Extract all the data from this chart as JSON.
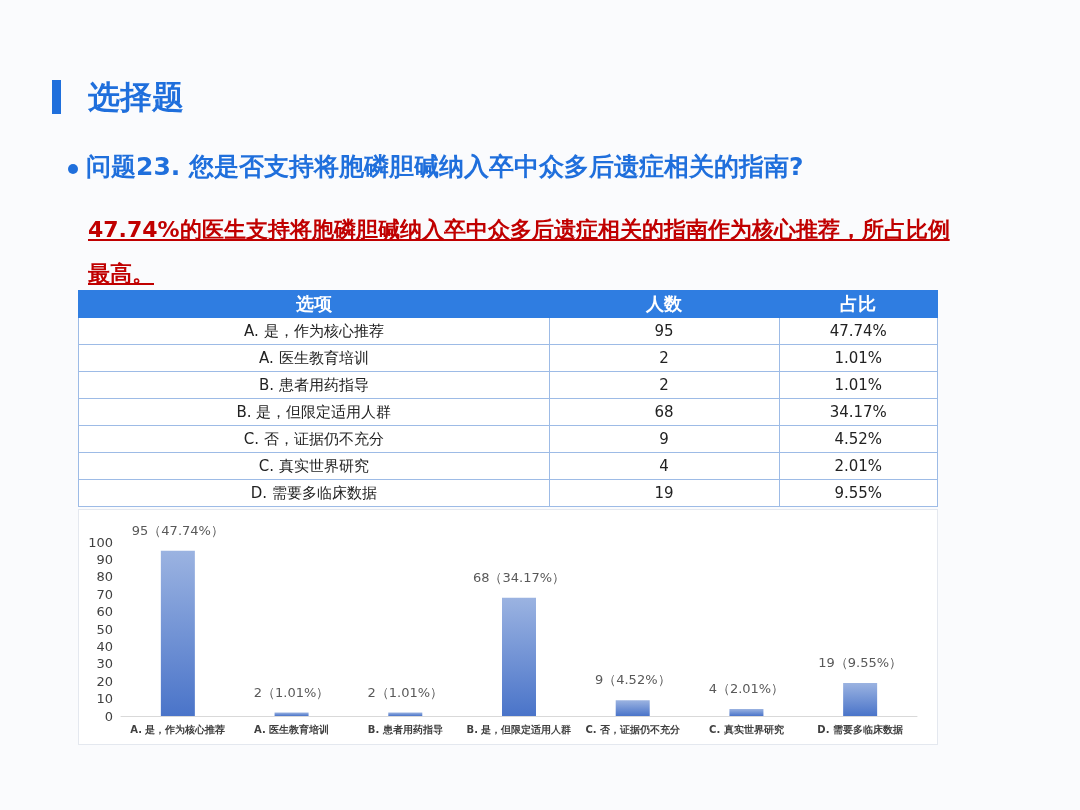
{
  "chart_data": {
    "type": "bar",
    "title": "选择题",
    "subtitle": "问题23. 您是否支持将胞磷胆碱纳入卒中众多后遗症相关的指南?",
    "categories": [
      "A. 是，作为核心推荐",
      "A. 医生教育培训",
      "B. 患者用药指导",
      "B. 是，但限定适用人群",
      "C. 否，证据仍不充分",
      "C. 真实世界研究",
      "D. 需要多临床数据"
    ],
    "values": [
      95,
      2,
      2,
      68,
      9,
      4,
      19
    ],
    "value_labels": [
      "95（47.74%）",
      "2（1.01%）",
      "2（1.01%）",
      "68（34.17%）",
      "9（4.52%）",
      "4（2.01%）",
      "19（9.55%）"
    ],
    "color": "#4a74c9",
    "ylim": [
      0,
      100
    ],
    "yticks": [
      0,
      10,
      20,
      30,
      40,
      50,
      60,
      70,
      80,
      90,
      100
    ],
    "grid": false,
    "annotations": [
      "47.74%的医生支持将胞磷胆碱纳入卒中众多后遗症相关的指南作为核心推荐，所占比例最高。",
      "选项",
      "人数",
      "占比",
      "95",
      "2",
      "2",
      "68",
      "9",
      "4",
      "19",
      "47.74%",
      "1.01%",
      "1.01%",
      "34.17%",
      "4.52%",
      "2.01%",
      "9.55%"
    ]
  }
}
